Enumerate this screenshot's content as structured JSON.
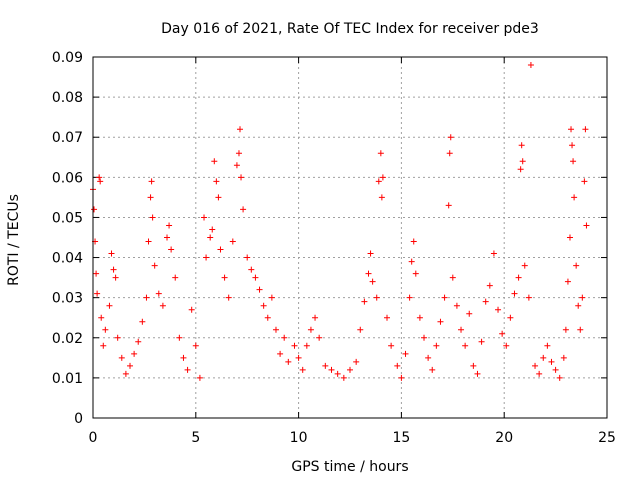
{
  "chart_data": {
    "type": "scatter",
    "title": "Day 016 of 2021, Rate Of TEC Index for receiver pde3",
    "xlabel": "GPS time / hours",
    "ylabel": "ROTI / TECUs",
    "xlim": [
      0,
      25
    ],
    "ylim": [
      0,
      0.09
    ],
    "xticks": [
      "0",
      "5",
      "10",
      "15",
      "20",
      "25"
    ],
    "yticks": [
      "0",
      "0.01",
      "0.02",
      "0.03",
      "0.04",
      "0.05",
      "0.06",
      "0.07",
      "0.08",
      "0.09"
    ],
    "grid": true,
    "marker": "plus",
    "color": "#ff0000",
    "series": [
      {
        "points": [
          [
            0.0,
            0.057
          ],
          [
            0.05,
            0.052
          ],
          [
            0.1,
            0.044
          ],
          [
            0.15,
            0.036
          ],
          [
            0.2,
            0.031
          ],
          [
            0.3,
            0.06
          ],
          [
            0.35,
            0.059
          ],
          [
            0.4,
            0.025
          ],
          [
            0.5,
            0.018
          ],
          [
            0.6,
            0.022
          ],
          [
            0.8,
            0.028
          ],
          [
            0.9,
            0.041
          ],
          [
            1.0,
            0.037
          ],
          [
            1.1,
            0.035
          ],
          [
            1.2,
            0.02
          ],
          [
            1.4,
            0.015
          ],
          [
            1.6,
            0.011
          ],
          [
            1.8,
            0.013
          ],
          [
            2.0,
            0.016
          ],
          [
            2.2,
            0.019
          ],
          [
            2.4,
            0.024
          ],
          [
            2.6,
            0.03
          ],
          [
            2.7,
            0.044
          ],
          [
            2.8,
            0.055
          ],
          [
            2.85,
            0.059
          ],
          [
            2.9,
            0.05
          ],
          [
            3.0,
            0.038
          ],
          [
            3.2,
            0.031
          ],
          [
            3.4,
            0.028
          ],
          [
            3.6,
            0.045
          ],
          [
            3.7,
            0.048
          ],
          [
            3.8,
            0.042
          ],
          [
            4.0,
            0.035
          ],
          [
            4.2,
            0.02
          ],
          [
            4.4,
            0.015
          ],
          [
            4.6,
            0.012
          ],
          [
            4.8,
            0.027
          ],
          [
            5.0,
            0.018
          ],
          [
            5.2,
            0.01
          ],
          [
            5.4,
            0.05
          ],
          [
            5.5,
            0.04
          ],
          [
            5.7,
            0.045
          ],
          [
            5.8,
            0.047
          ],
          [
            5.9,
            0.064
          ],
          [
            6.0,
            0.059
          ],
          [
            6.1,
            0.055
          ],
          [
            6.2,
            0.042
          ],
          [
            6.4,
            0.035
          ],
          [
            6.6,
            0.03
          ],
          [
            6.8,
            0.044
          ],
          [
            7.0,
            0.063
          ],
          [
            7.1,
            0.066
          ],
          [
            7.15,
            0.072
          ],
          [
            7.2,
            0.06
          ],
          [
            7.3,
            0.052
          ],
          [
            7.5,
            0.04
          ],
          [
            7.7,
            0.037
          ],
          [
            7.9,
            0.035
          ],
          [
            8.1,
            0.032
          ],
          [
            8.3,
            0.028
          ],
          [
            8.5,
            0.025
          ],
          [
            8.7,
            0.03
          ],
          [
            8.9,
            0.022
          ],
          [
            9.1,
            0.016
          ],
          [
            9.3,
            0.02
          ],
          [
            9.5,
            0.014
          ],
          [
            9.8,
            0.018
          ],
          [
            10.0,
            0.015
          ],
          [
            10.2,
            0.012
          ],
          [
            10.4,
            0.018
          ],
          [
            10.6,
            0.022
          ],
          [
            10.8,
            0.025
          ],
          [
            11.0,
            0.02
          ],
          [
            11.3,
            0.013
          ],
          [
            11.6,
            0.012
          ],
          [
            11.9,
            0.011
          ],
          [
            12.2,
            0.01
          ],
          [
            12.5,
            0.012
          ],
          [
            12.8,
            0.014
          ],
          [
            13.0,
            0.022
          ],
          [
            13.2,
            0.029
          ],
          [
            13.4,
            0.036
          ],
          [
            13.5,
            0.041
          ],
          [
            13.6,
            0.034
          ],
          [
            13.8,
            0.03
          ],
          [
            13.9,
            0.059
          ],
          [
            14.0,
            0.066
          ],
          [
            14.05,
            0.055
          ],
          [
            14.1,
            0.06
          ],
          [
            14.3,
            0.025
          ],
          [
            14.5,
            0.018
          ],
          [
            14.8,
            0.013
          ],
          [
            15.0,
            0.01
          ],
          [
            15.2,
            0.016
          ],
          [
            15.4,
            0.03
          ],
          [
            15.5,
            0.039
          ],
          [
            15.6,
            0.044
          ],
          [
            15.7,
            0.036
          ],
          [
            15.9,
            0.025
          ],
          [
            16.1,
            0.02
          ],
          [
            16.3,
            0.015
          ],
          [
            16.5,
            0.012
          ],
          [
            16.7,
            0.018
          ],
          [
            16.9,
            0.024
          ],
          [
            17.1,
            0.03
          ],
          [
            17.3,
            0.053
          ],
          [
            17.35,
            0.066
          ],
          [
            17.4,
            0.07
          ],
          [
            17.5,
            0.035
          ],
          [
            17.7,
            0.028
          ],
          [
            17.9,
            0.022
          ],
          [
            18.1,
            0.018
          ],
          [
            18.3,
            0.026
          ],
          [
            18.5,
            0.013
          ],
          [
            18.7,
            0.011
          ],
          [
            18.9,
            0.019
          ],
          [
            19.1,
            0.029
          ],
          [
            19.3,
            0.033
          ],
          [
            19.5,
            0.041
          ],
          [
            19.7,
            0.027
          ],
          [
            19.9,
            0.021
          ],
          [
            20.1,
            0.018
          ],
          [
            20.3,
            0.025
          ],
          [
            20.5,
            0.031
          ],
          [
            20.7,
            0.035
          ],
          [
            20.8,
            0.062
          ],
          [
            20.85,
            0.068
          ],
          [
            20.9,
            0.064
          ],
          [
            21.0,
            0.038
          ],
          [
            21.2,
            0.03
          ],
          [
            21.3,
            0.088
          ],
          [
            21.5,
            0.013
          ],
          [
            21.7,
            0.011
          ],
          [
            21.9,
            0.015
          ],
          [
            22.1,
            0.018
          ],
          [
            22.3,
            0.014
          ],
          [
            22.5,
            0.012
          ],
          [
            22.7,
            0.01
          ],
          [
            22.9,
            0.015
          ],
          [
            23.0,
            0.022
          ],
          [
            23.1,
            0.034
          ],
          [
            23.2,
            0.045
          ],
          [
            23.25,
            0.072
          ],
          [
            23.3,
            0.068
          ],
          [
            23.35,
            0.064
          ],
          [
            23.4,
            0.055
          ],
          [
            23.5,
            0.038
          ],
          [
            23.6,
            0.028
          ],
          [
            23.7,
            0.022
          ],
          [
            23.8,
            0.03
          ],
          [
            23.9,
            0.059
          ],
          [
            23.95,
            0.072
          ],
          [
            24.0,
            0.048
          ]
        ]
      }
    ]
  }
}
